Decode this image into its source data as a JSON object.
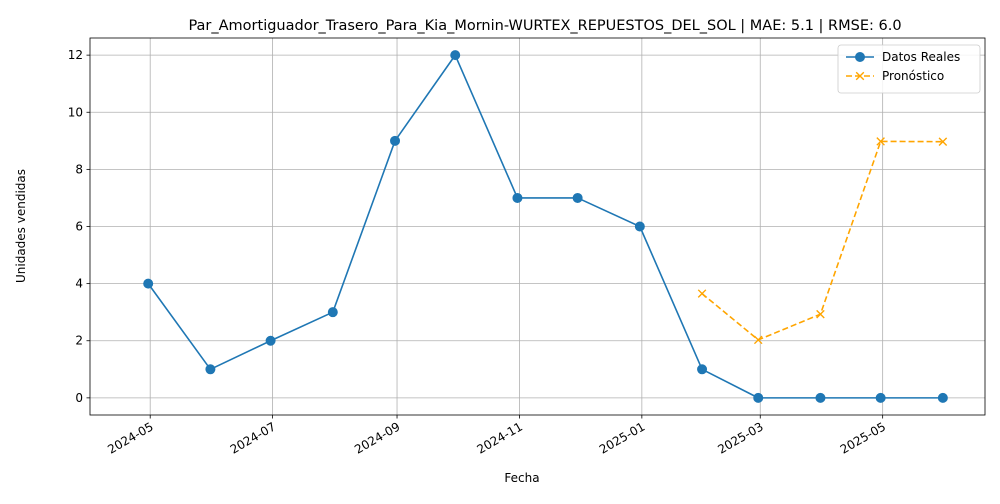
{
  "chart_data": {
    "type": "line",
    "title": "Par_Amortiguador_Trasero_Para_Kia_Mornin-WURTEX_REPUESTOS_DEL_SOL | MAE: 5.1 | RMSE: 6.0",
    "xlabel": "Fecha",
    "ylabel": "Unidades vendidas",
    "x_type": "date",
    "xlim": [
      "2024-04-01",
      "2025-06-21"
    ],
    "ylim": [
      -0.6,
      12.6
    ],
    "x_ticks": [
      {
        "date": "2024-05-01",
        "label": "2024-05"
      },
      {
        "date": "2024-07-01",
        "label": "2024-07"
      },
      {
        "date": "2024-09-01",
        "label": "2024-09"
      },
      {
        "date": "2024-11-01",
        "label": "2024-11"
      },
      {
        "date": "2025-01-01",
        "label": "2025-01"
      },
      {
        "date": "2025-03-01",
        "label": "2025-03"
      },
      {
        "date": "2025-05-01",
        "label": "2025-05"
      }
    ],
    "y_ticks": [
      0,
      2,
      4,
      6,
      8,
      10,
      12
    ],
    "grid": true,
    "legend_position": "top-right",
    "series": [
      {
        "name": "Datos Reales",
        "color": "#1f77b4",
        "style": "solid",
        "marker": "circle",
        "points": [
          {
            "x": "2024-04-30",
            "y": 4
          },
          {
            "x": "2024-05-31",
            "y": 1
          },
          {
            "x": "2024-06-30",
            "y": 2
          },
          {
            "x": "2024-07-31",
            "y": 3
          },
          {
            "x": "2024-08-31",
            "y": 9
          },
          {
            "x": "2024-09-30",
            "y": 12
          },
          {
            "x": "2024-10-31",
            "y": 7
          },
          {
            "x": "2024-11-30",
            "y": 7
          },
          {
            "x": "2024-12-31",
            "y": 6
          },
          {
            "x": "2025-01-31",
            "y": 1
          },
          {
            "x": "2025-02-28",
            "y": 0
          },
          {
            "x": "2025-03-31",
            "y": 0
          },
          {
            "x": "2025-04-30",
            "y": 0
          },
          {
            "x": "2025-05-31",
            "y": 0
          }
        ]
      },
      {
        "name": "Pronóstico",
        "color": "#ffa500",
        "style": "dashed",
        "marker": "x",
        "points": [
          {
            "x": "2025-01-31",
            "y": 3.65
          },
          {
            "x": "2025-02-28",
            "y": 2.03
          },
          {
            "x": "2025-03-31",
            "y": 2.93
          },
          {
            "x": "2025-04-30",
            "y": 8.98
          },
          {
            "x": "2025-05-31",
            "y": 8.97
          }
        ]
      }
    ]
  }
}
